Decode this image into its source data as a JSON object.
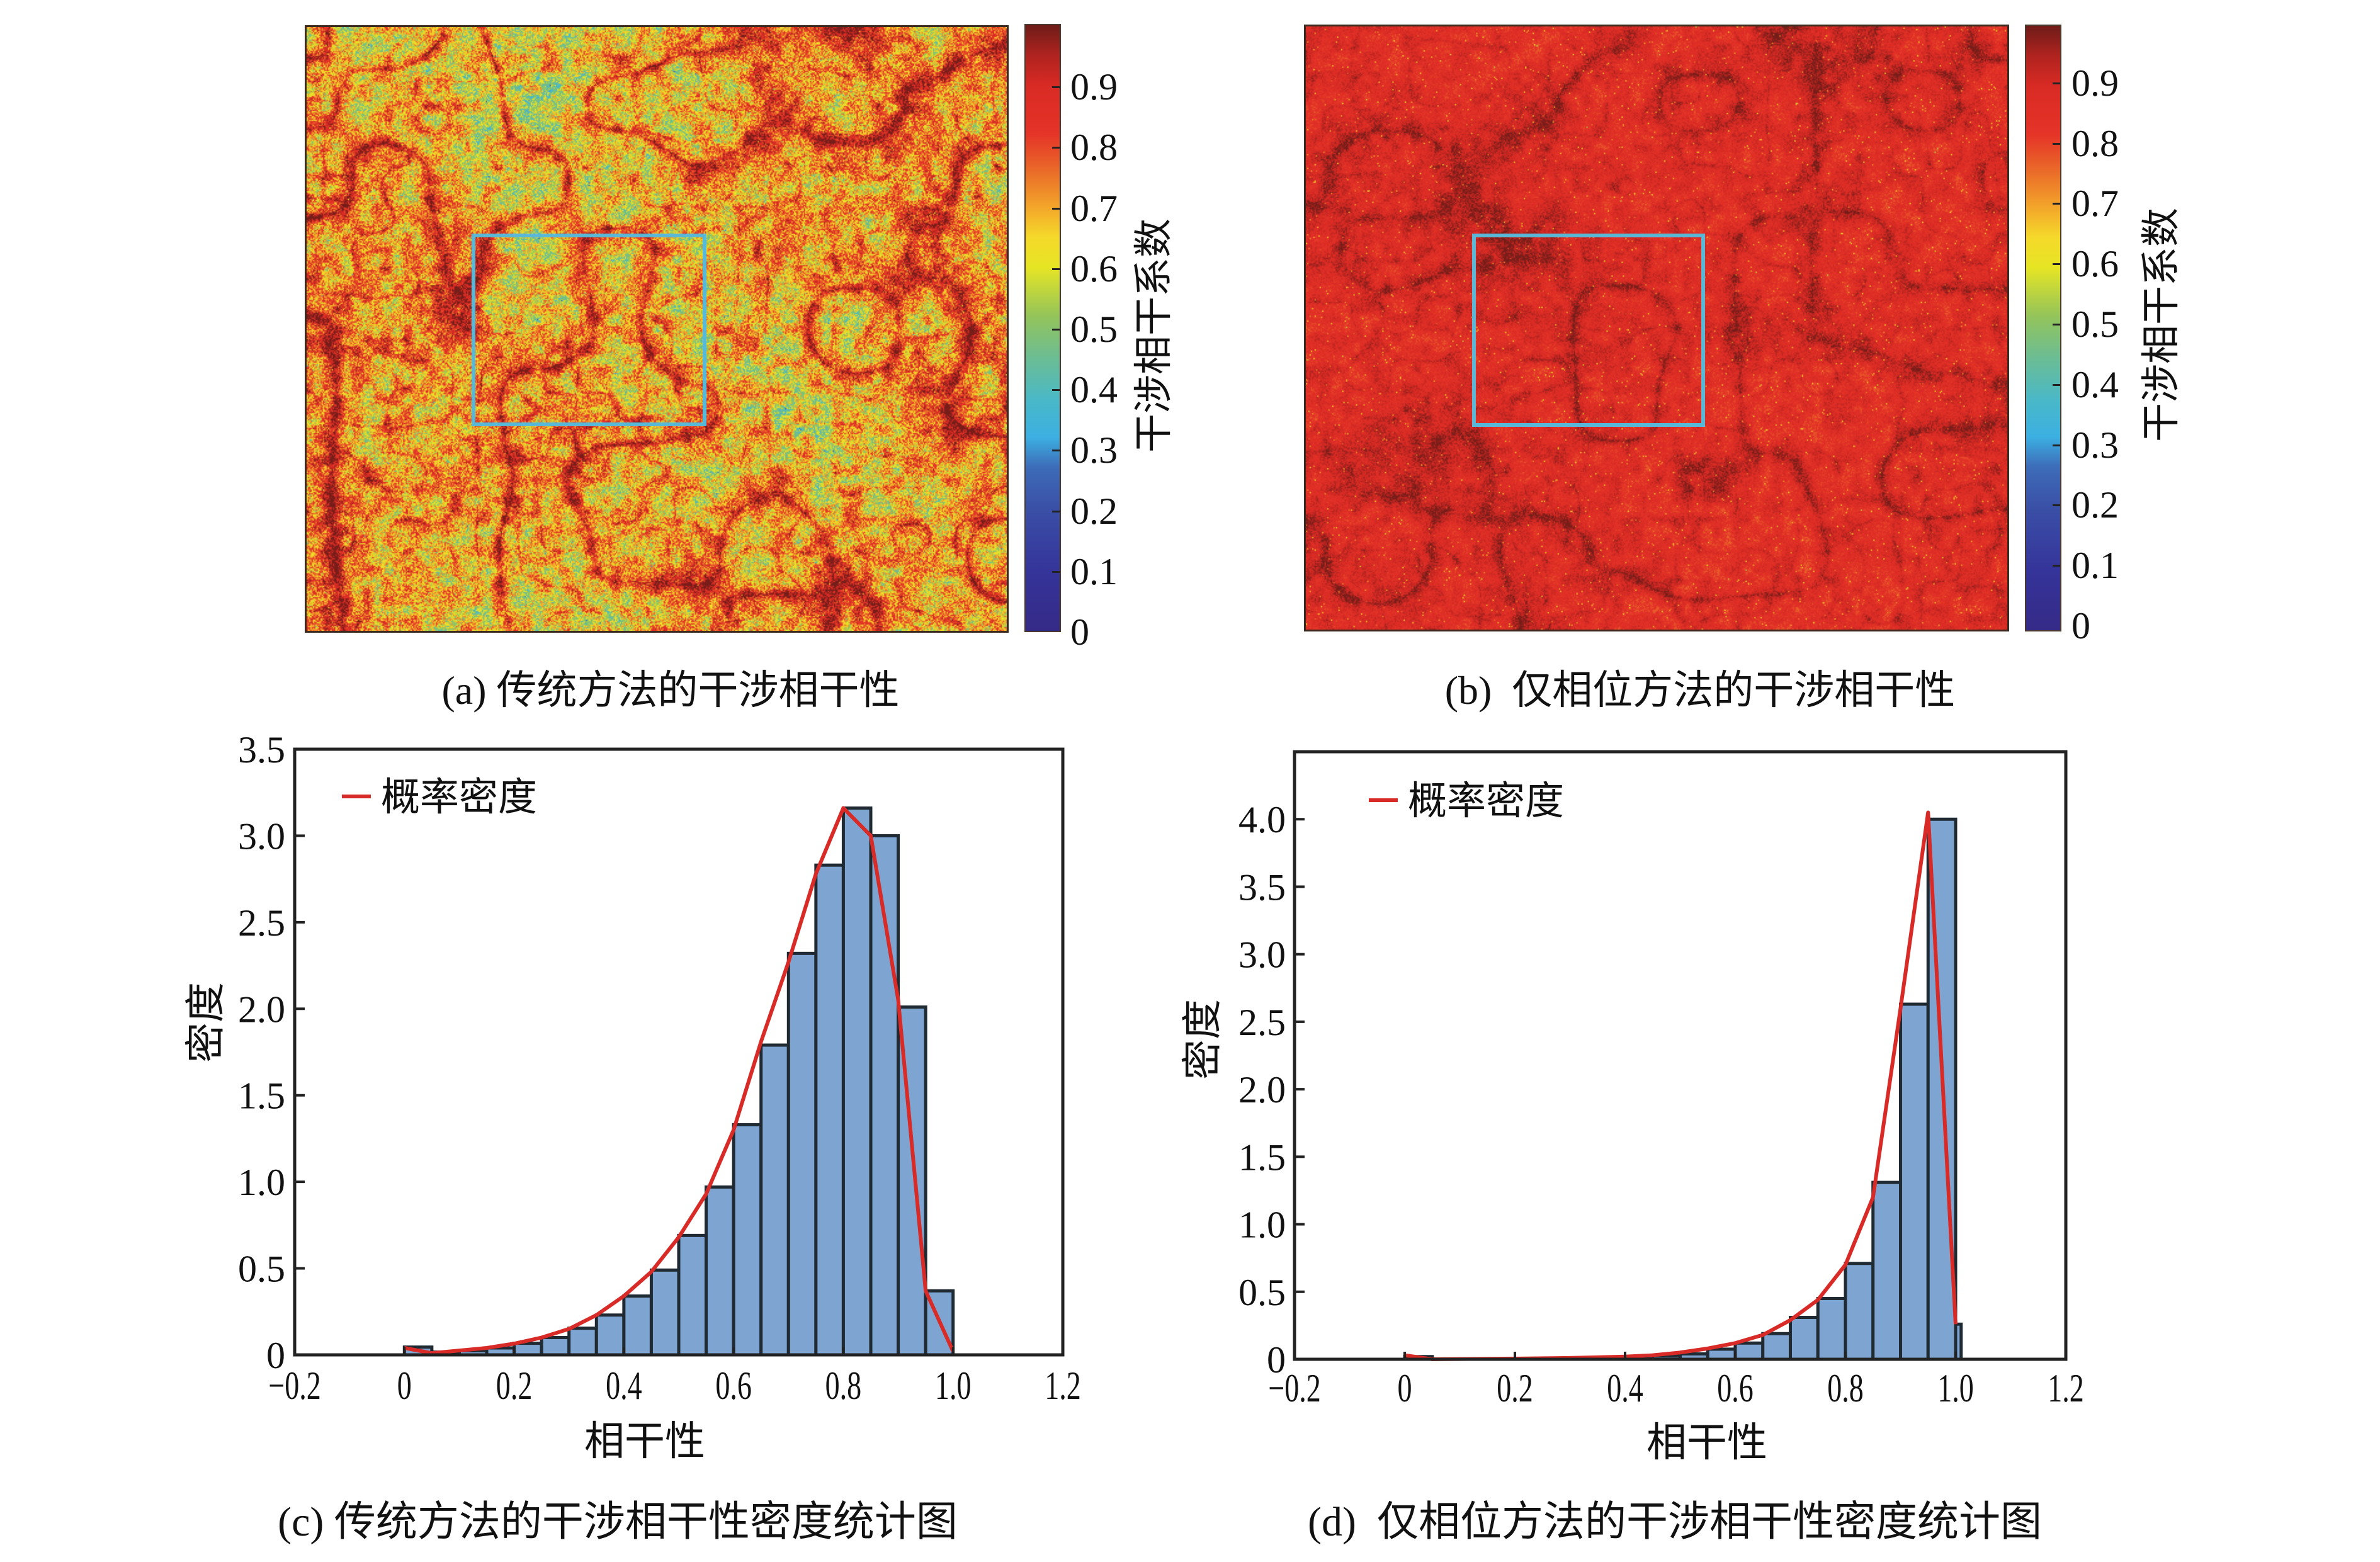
{
  "panels": {
    "a": {
      "caption": "(a) 传统方法的干涉相干性",
      "colorbar_label": "干涉相干系数",
      "colorbar_ticks": [
        "0",
        "0.1",
        "0.2",
        "0.3",
        "0.4",
        "0.5",
        "0.6",
        "0.7",
        "0.8",
        "0.9"
      ]
    },
    "b": {
      "caption": "(b)  仅相位方法的干涉相干性",
      "colorbar_label": "干涉相干系数",
      "colorbar_ticks": [
        "0",
        "0.1",
        "0.2",
        "0.3",
        "0.4",
        "0.5",
        "0.6",
        "0.7",
        "0.8",
        "0.9"
      ]
    }
  },
  "colormap": {
    "name": "jet",
    "range": [
      0,
      1
    ],
    "stops": [
      {
        "value": 0.0,
        "color": "#352a87"
      },
      {
        "value": 0.1,
        "color": "#35349a"
      },
      {
        "value": 0.2,
        "color": "#3a4fa6"
      },
      {
        "value": 0.27,
        "color": "#3d6cb8"
      },
      {
        "value": 0.32,
        "color": "#3cb0e2"
      },
      {
        "value": 0.38,
        "color": "#49b8c8"
      },
      {
        "value": 0.45,
        "color": "#6bbd94"
      },
      {
        "value": 0.52,
        "color": "#94c45a"
      },
      {
        "value": 0.6,
        "color": "#e6e524"
      },
      {
        "value": 0.65,
        "color": "#f5d92a"
      },
      {
        "value": 0.7,
        "color": "#f3a52a"
      },
      {
        "value": 0.76,
        "color": "#ea6a29"
      },
      {
        "value": 0.82,
        "color": "#e53428"
      },
      {
        "value": 0.9,
        "color": "#d92a24"
      },
      {
        "value": 0.95,
        "color": "#b0231f"
      },
      {
        "value": 1.0,
        "color": "#6e1c18"
      }
    ]
  },
  "colors": {
    "bar_fill": "#7ea5d1",
    "bar_edge": "#1f2a33",
    "curve": "#d82b27",
    "roi_box": "#58b8d8",
    "axis": "#222222"
  },
  "chart_data": [
    {
      "type": "bar",
      "title": "(c) 传统方法的干涉相干性密度统计图",
      "xlabel": "相干性",
      "ylabel": "密度",
      "xlim": [
        -0.2,
        1.2
      ],
      "ylim": [
        0,
        3.5
      ],
      "xticks": [
        -0.2,
        0,
        0.2,
        0.4,
        0.6,
        0.8,
        1.0,
        1.2
      ],
      "xtick_labels": [
        "−0.2",
        "0",
        "0.2",
        "0.4",
        "0.6",
        "0.8",
        "1.0",
        "1.2"
      ],
      "yticks": [
        0,
        0.5,
        1.0,
        1.5,
        2.0,
        2.5,
        3.0,
        3.5
      ],
      "ytick_labels": [
        "0",
        "0.5",
        "1.0",
        "1.5",
        "2.0",
        "2.5",
        "3.0",
        "3.5"
      ],
      "legend": [
        "概率密度"
      ],
      "legend_position": "top-left",
      "grid": false,
      "bins": [
        {
          "start": 0.0,
          "end": 0.05,
          "density": 0.045
        },
        {
          "start": 0.05,
          "end": 0.1,
          "density": 0.016
        },
        {
          "start": 0.1,
          "end": 0.15,
          "density": 0.024
        },
        {
          "start": 0.15,
          "end": 0.2,
          "density": 0.04
        },
        {
          "start": 0.2,
          "end": 0.25,
          "density": 0.067
        },
        {
          "start": 0.25,
          "end": 0.3,
          "density": 0.1
        },
        {
          "start": 0.3,
          "end": 0.35,
          "density": 0.154
        },
        {
          "start": 0.35,
          "end": 0.4,
          "density": 0.23
        },
        {
          "start": 0.4,
          "end": 0.45,
          "density": 0.34
        },
        {
          "start": 0.45,
          "end": 0.5,
          "density": 0.49
        },
        {
          "start": 0.5,
          "end": 0.55,
          "density": 0.69
        },
        {
          "start": 0.55,
          "end": 0.6,
          "density": 0.97
        },
        {
          "start": 0.6,
          "end": 0.65,
          "density": 1.33
        },
        {
          "start": 0.65,
          "end": 0.7,
          "density": 1.79
        },
        {
          "start": 0.7,
          "end": 0.75,
          "density": 2.32
        },
        {
          "start": 0.75,
          "end": 0.8,
          "density": 2.83
        },
        {
          "start": 0.8,
          "end": 0.85,
          "density": 3.16
        },
        {
          "start": 0.85,
          "end": 0.9,
          "density": 3.0
        },
        {
          "start": 0.9,
          "end": 0.95,
          "density": 2.01
        },
        {
          "start": 0.95,
          "end": 1.0,
          "density": 0.37
        }
      ],
      "density_curve": {
        "x": [
          0,
          0.05,
          0.1,
          0.15,
          0.2,
          0.25,
          0.3,
          0.35,
          0.4,
          0.45,
          0.5,
          0.55,
          0.6,
          0.65,
          0.7,
          0.75,
          0.8,
          0.85,
          0.9,
          0.95,
          1.0
        ],
        "y": [
          0.04,
          0.01,
          0.025,
          0.04,
          0.065,
          0.1,
          0.15,
          0.23,
          0.34,
          0.48,
          0.68,
          0.93,
          1.3,
          1.81,
          2.27,
          2.78,
          3.16,
          3.0,
          2.05,
          0.37,
          0.02
        ]
      }
    },
    {
      "type": "bar",
      "title": "(d)  仅相位方法的干涉相干性密度统计图",
      "xlabel": "相干性",
      "ylabel": "密度",
      "xlim": [
        -0.2,
        1.2
      ],
      "ylim": [
        0,
        4.5
      ],
      "xticks": [
        -0.2,
        0,
        0.2,
        0.4,
        0.6,
        0.8,
        1.0,
        1.2
      ],
      "xtick_labels": [
        "−0.2",
        "0",
        "0.2",
        "0.4",
        "0.6",
        "0.8",
        "1.0",
        "1.2"
      ],
      "yticks": [
        0,
        0.5,
        1.0,
        1.5,
        2.0,
        2.5,
        3.0,
        3.5,
        4.0
      ],
      "ytick_labels": [
        "0",
        "0.5",
        "1.0",
        "1.5",
        "2.0",
        "2.5",
        "3.0",
        "3.5",
        "4.0"
      ],
      "legend": [
        "概率密度"
      ],
      "legend_position": "top-left",
      "grid": false,
      "bins": [
        {
          "start": 0.0,
          "end": 0.05,
          "density": 0.02
        },
        {
          "start": 0.35,
          "end": 0.4,
          "density": 0.005
        },
        {
          "start": 0.4,
          "end": 0.45,
          "density": 0.015
        },
        {
          "start": 0.45,
          "end": 0.5,
          "density": 0.025
        },
        {
          "start": 0.5,
          "end": 0.55,
          "density": 0.04
        },
        {
          "start": 0.55,
          "end": 0.6,
          "density": 0.075
        },
        {
          "start": 0.6,
          "end": 0.65,
          "density": 0.12
        },
        {
          "start": 0.65,
          "end": 0.7,
          "density": 0.19
        },
        {
          "start": 0.7,
          "end": 0.75,
          "density": 0.31
        },
        {
          "start": 0.75,
          "end": 0.8,
          "density": 0.45
        },
        {
          "start": 0.8,
          "end": 0.85,
          "density": 0.71
        },
        {
          "start": 0.85,
          "end": 0.9,
          "density": 1.31
        },
        {
          "start": 0.9,
          "end": 0.95,
          "density": 2.63
        },
        {
          "start": 0.95,
          "end": 1.0,
          "density": 4.0
        },
        {
          "start": 1.0,
          "end": 1.01,
          "density": 0.26
        }
      ],
      "density_curve": {
        "x": [
          0,
          0.05,
          0.1,
          0.2,
          0.3,
          0.4,
          0.45,
          0.5,
          0.55,
          0.6,
          0.65,
          0.7,
          0.75,
          0.8,
          0.85,
          0.9,
          0.95,
          1.0
        ],
        "y": [
          0.03,
          0.0,
          0.002,
          0.005,
          0.01,
          0.02,
          0.03,
          0.05,
          0.08,
          0.12,
          0.18,
          0.29,
          0.44,
          0.7,
          1.2,
          2.6,
          4.05,
          0.26
        ]
      }
    }
  ]
}
